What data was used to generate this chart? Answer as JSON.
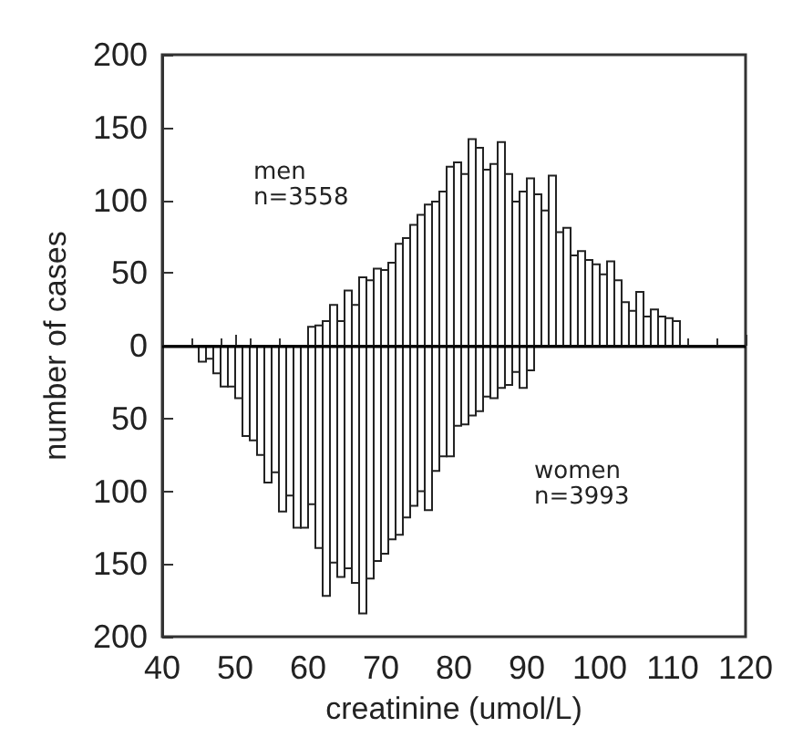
{
  "chart_data": {
    "type": "histogram",
    "xlabel": "creatinine (umol/L)",
    "ylabel": "number of cases",
    "bins": [
      45,
      46,
      47,
      48,
      49,
      50,
      51,
      52,
      53,
      54,
      55,
      56,
      57,
      58,
      59,
      60,
      61,
      62,
      63,
      64,
      65,
      66,
      67,
      68,
      69,
      70,
      71,
      72,
      73,
      74,
      75,
      76,
      77,
      78,
      79,
      80,
      81,
      82,
      83,
      84,
      85,
      86,
      87,
      88,
      89,
      90,
      91,
      92,
      93,
      94,
      95,
      96,
      97,
      98,
      99,
      100,
      101,
      102,
      103,
      104,
      105,
      106,
      107,
      108,
      109,
      110,
      111
    ],
    "series": [
      {
        "color": "#ffffff",
        "values": [
          null,
          null,
          null,
          null,
          null,
          null,
          null,
          null,
          null,
          null,
          null,
          null,
          null,
          null,
          null,
          13,
          14,
          17,
          28,
          17,
          38,
          28,
          47,
          45,
          53,
          52,
          57,
          70,
          74,
          83,
          90,
          97,
          99,
          106,
          123,
          126,
          118,
          142,
          136,
          121,
          125,
          140,
          118,
          99,
          106,
          115,
          104,
          93,
          117,
          78,
          81,
          62,
          65,
          59,
          56,
          49,
          58,
          45,
          30,
          24,
          37,
          20,
          25,
          20,
          19,
          17
        ]
      },
      {
        "color": "#ffffff",
        "values": [
          -11,
          -9,
          -19,
          -28,
          -28,
          -36,
          -62,
          -65,
          -75,
          -94,
          -87,
          -114,
          -103,
          -125,
          -125,
          -109,
          -139,
          -172,
          -149,
          -159,
          -153,
          -163,
          -184,
          -160,
          -148,
          -143,
          -133,
          -130,
          -118,
          -110,
          -100,
          -113,
          -86,
          -76,
          -76,
          -55,
          -54,
          -48,
          -45,
          -35,
          -36,
          -29,
          -27,
          -18,
          -29,
          -17,
          null,
          null,
          null,
          null,
          null,
          null,
          null,
          null,
          null,
          null,
          null,
          null,
          null,
          null,
          null,
          null,
          null,
          null,
          null,
          null
        ]
      }
    ],
    "xlim": [
      40,
      120
    ],
    "xticks": [
      40,
      50,
      60,
      70,
      80,
      90,
      100,
      110,
      120
    ],
    "ylim": [
      -200,
      200
    ],
    "yticks": [
      {
        "value": -200,
        "label": "200"
      },
      {
        "value": -150,
        "label": "150"
      },
      {
        "value": -100,
        "label": "100"
      },
      {
        "value": -50,
        "label": "50"
      },
      0,
      50,
      100,
      150,
      200
    ],
    "ref_lines": [
      {
        "axis": "y",
        "value": 0,
        "color": "#000000"
      }
    ],
    "annotations": [
      "men",
      "n=3558",
      "women",
      "n=3993"
    ]
  }
}
